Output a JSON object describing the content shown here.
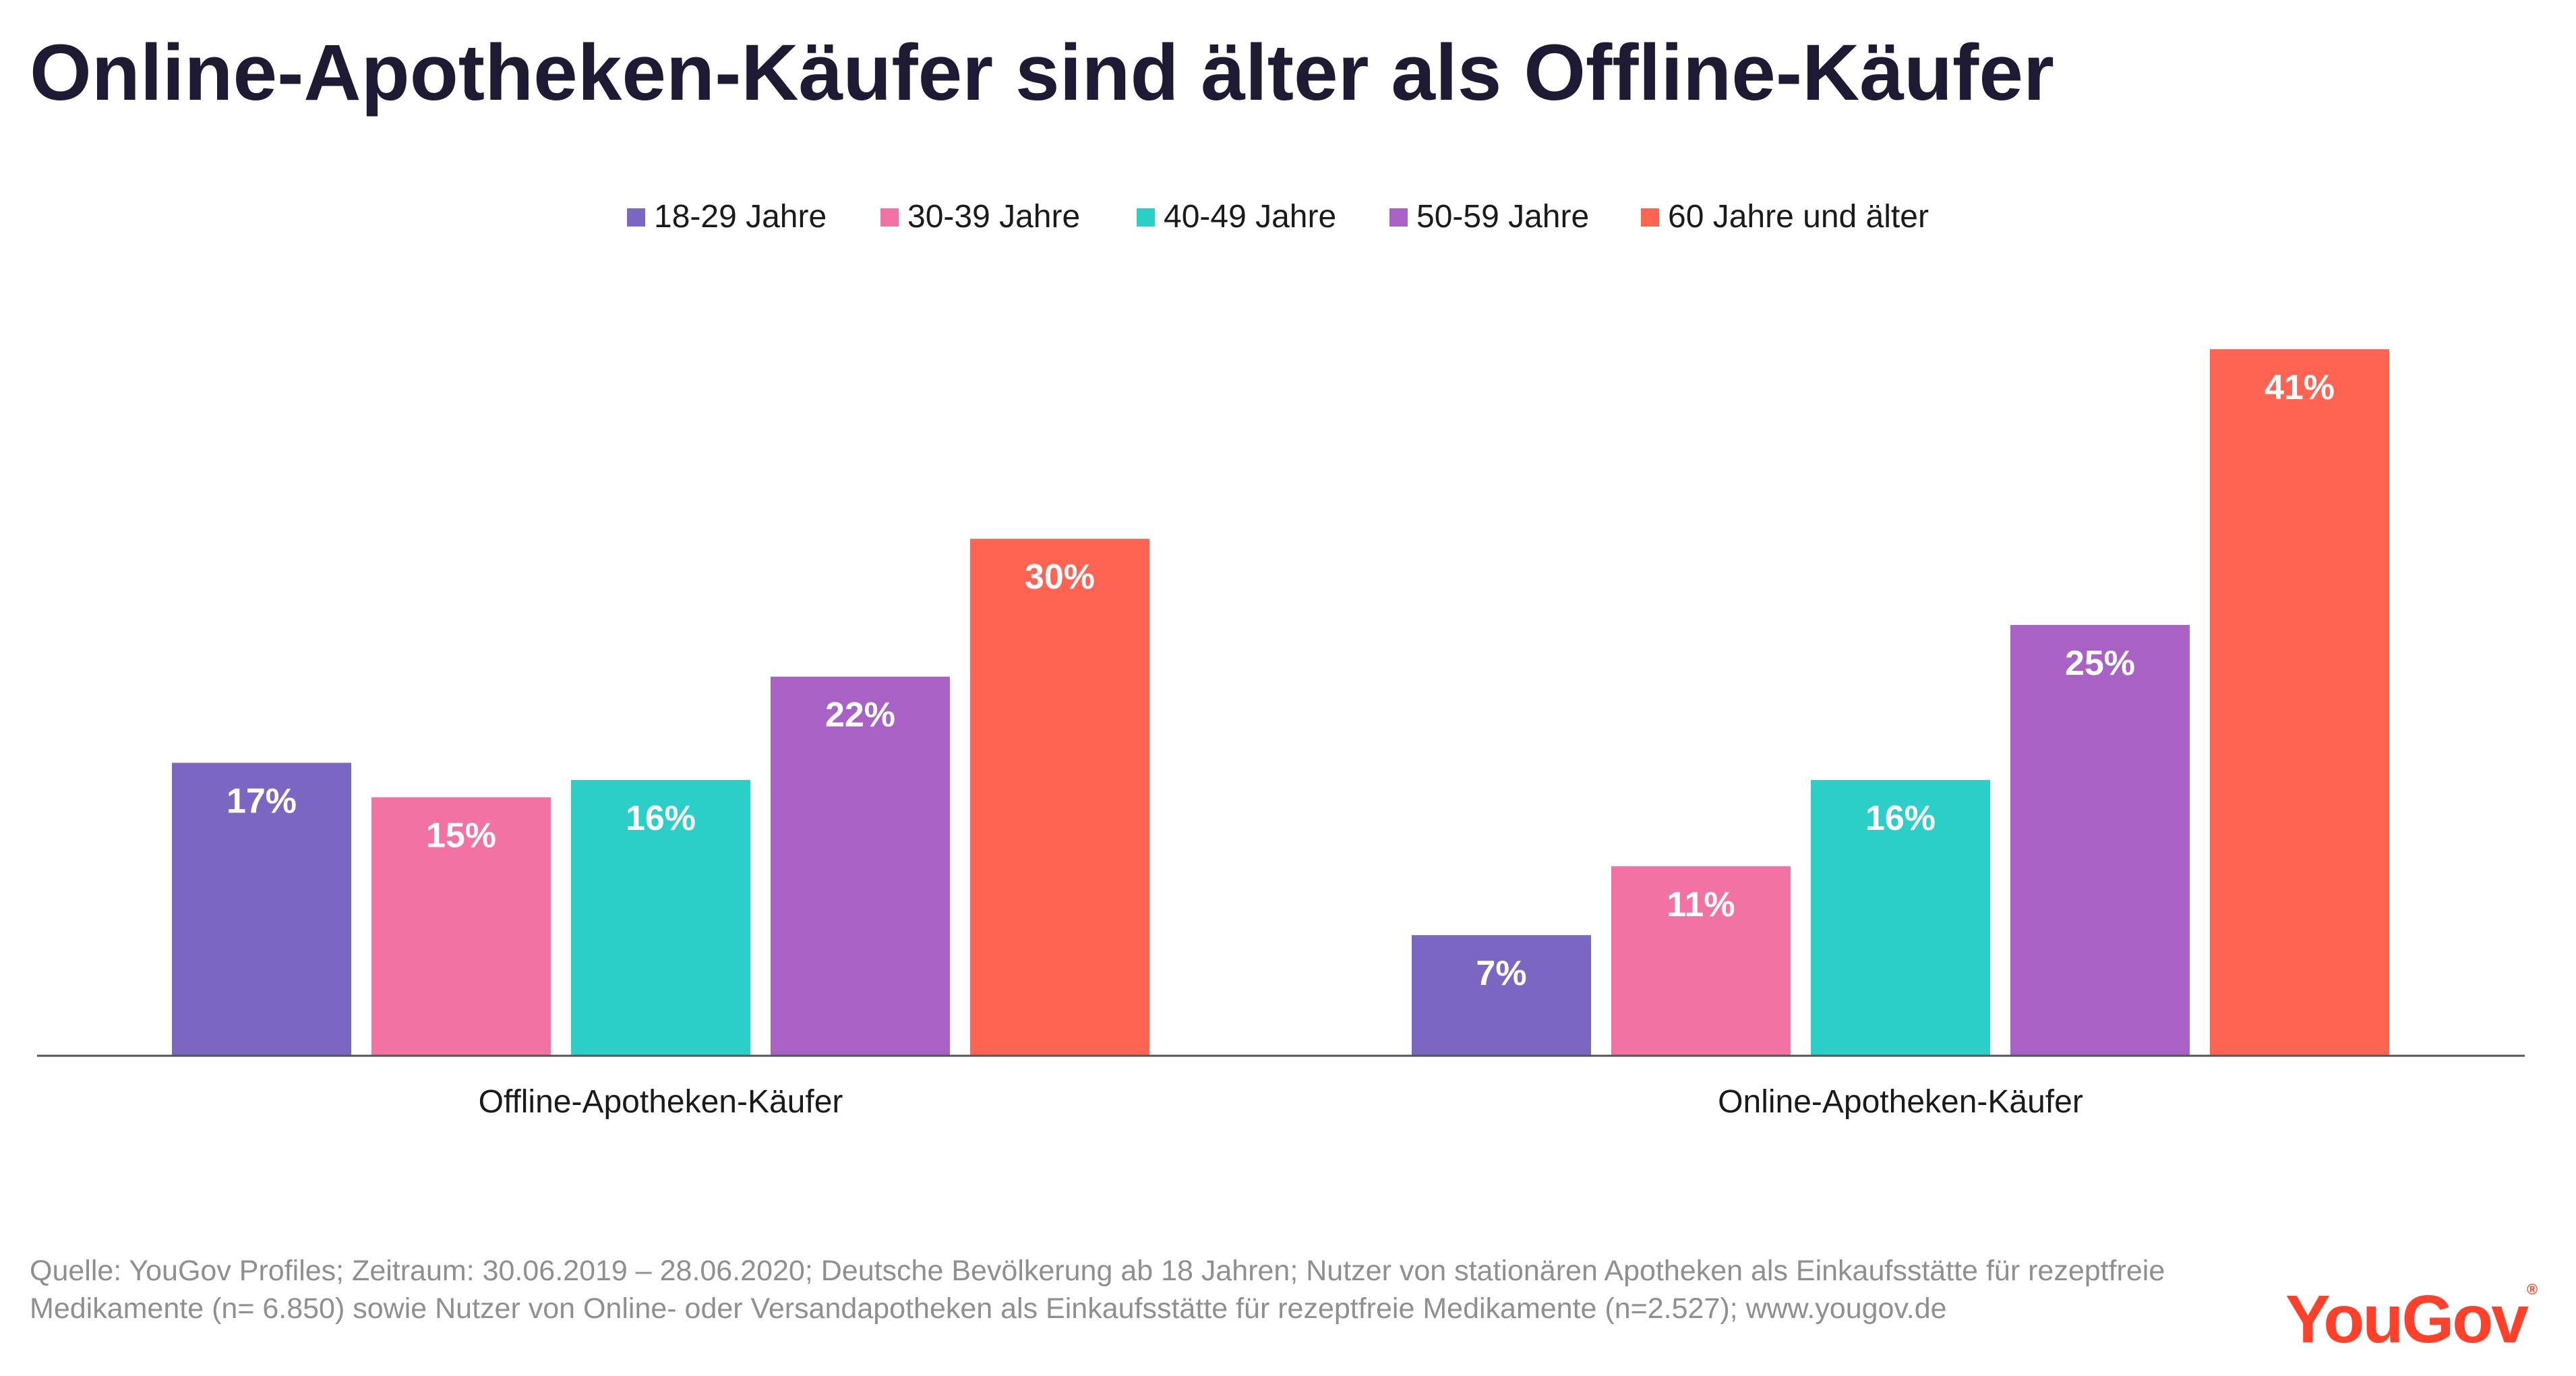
{
  "title": "Online-Apotheken-Käufer sind älter als Offline-Käufer",
  "source_line1": "Quelle: YouGov Profiles; Zeitraum: 30.06.2019 – 28.06.2020; Deutsche Bevölkerung ab 18 Jahren; Nutzer von stationären Apotheken als Einkaufsstätte für rezeptfreie",
  "source_line2": "Medikamente (n= 6.850) sowie Nutzer von Online- oder Versandapotheken als Einkaufsstätte für rezeptfreie Medikamente (n=2.527); www.yougov.de",
  "logo": {
    "text": "YouGov",
    "registered": "®"
  },
  "chart_data": {
    "type": "bar",
    "categories": [
      "Offline-Apotheken-Käufer",
      "Online-Apotheken-Käufer"
    ],
    "series": [
      {
        "name": "18-29 Jahre",
        "color": "#7b66c2",
        "values": [
          17,
          7
        ]
      },
      {
        "name": "30-39 Jahre",
        "color": "#f273a3",
        "values": [
          15,
          11
        ]
      },
      {
        "name": "40-49 Jahre",
        "color": "#2ccfc8",
        "values": [
          16,
          16
        ]
      },
      {
        "name": "50-59 Jahre",
        "color": "#a862c6",
        "values": [
          22,
          25
        ]
      },
      {
        "name": "60 Jahre und älter",
        "color": "#ff6352",
        "values": [
          30,
          41
        ]
      }
    ],
    "value_suffix": "%",
    "ylim": [
      0,
      41
    ],
    "legend_position": "top-center",
    "grid": false,
    "xlabel": "",
    "ylabel": ""
  }
}
